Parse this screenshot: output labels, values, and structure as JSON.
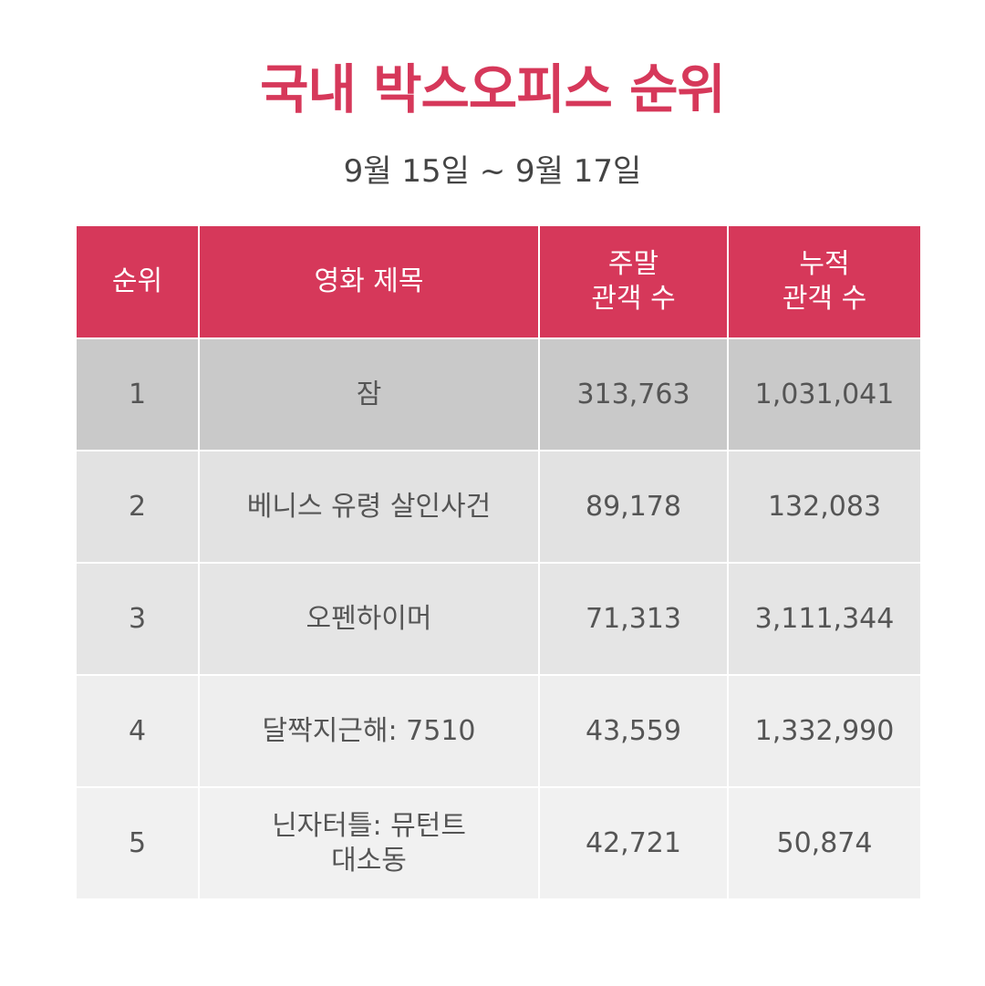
{
  "title": "국내 박스오피스 순위",
  "subtitle": "9월 15일 ~ 9월 17일",
  "table": {
    "headers": [
      "순위",
      "영화 제목",
      "주말\n관객 수",
      "누적\n관객 수"
    ],
    "rows": [
      {
        "rank": "1",
        "title": "잠",
        "weekend": "313,763",
        "total": "1,031,041"
      },
      {
        "rank": "2",
        "title": "베니스 유령 살인사건",
        "weekend": "89,178",
        "total": "132,083"
      },
      {
        "rank": "3",
        "title": "오펜하이머",
        "weekend": "71,313",
        "total": "3,111,344"
      },
      {
        "rank": "4",
        "title": "달짝지근해: 7510",
        "weekend": "43,559",
        "total": "1,332,990"
      },
      {
        "rank": "5",
        "title": "닌자터틀: 뮤턴트\n대소동",
        "weekend": "42,721",
        "total": "50,874"
      }
    ]
  },
  "colors": {
    "accent": "#d6385a",
    "text": "#555555",
    "row_backgrounds": [
      "#c9c9c9",
      "#e2e2e2",
      "#e5e5e5",
      "#eeeeee",
      "#f1f1f1"
    ]
  }
}
